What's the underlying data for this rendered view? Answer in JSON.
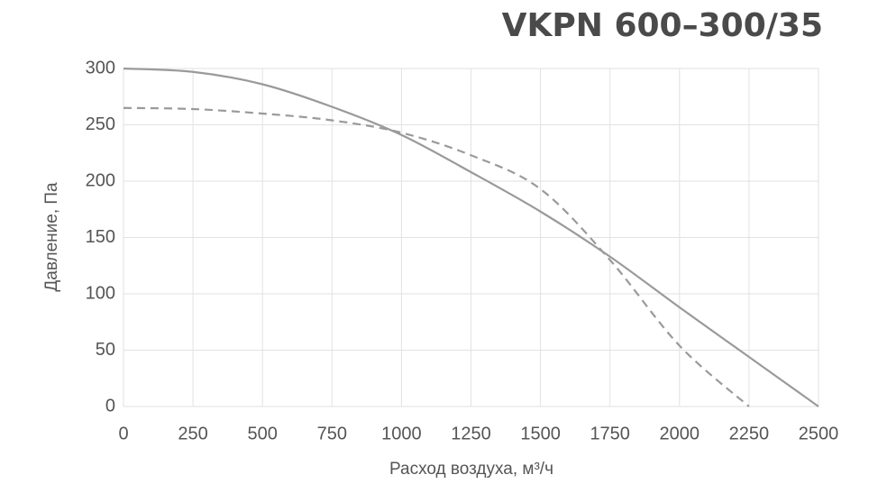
{
  "chart_data": {
    "type": "line",
    "title": "VKPN 600–300/35",
    "x_label": "Расход воздуха, м³/ч",
    "y_label": "Давление, Па",
    "x": [
      0,
      250,
      500,
      750,
      1000,
      1250,
      1500,
      1750,
      2000,
      2250,
      2500
    ],
    "series": [
      {
        "color": "#9a9a9a",
        "dash": false,
        "values": [
          300,
          297,
          286,
          266,
          241,
          208,
          173,
          133,
          88,
          44,
          0
        ]
      },
      {
        "color": "#9a9a9a",
        "dash": true,
        "values": [
          265,
          264,
          260,
          254,
          243,
          223,
          193,
          130,
          54,
          0,
          null
        ]
      }
    ],
    "xlim": [
      0,
      2500
    ],
    "xticks": [
      0,
      250,
      500,
      750,
      1000,
      1250,
      1500,
      1750,
      2000,
      2250,
      2500
    ],
    "ylim": [
      0,
      300
    ],
    "yticks": [
      0,
      50,
      100,
      150,
      200,
      250,
      300
    ],
    "grid": true
  }
}
